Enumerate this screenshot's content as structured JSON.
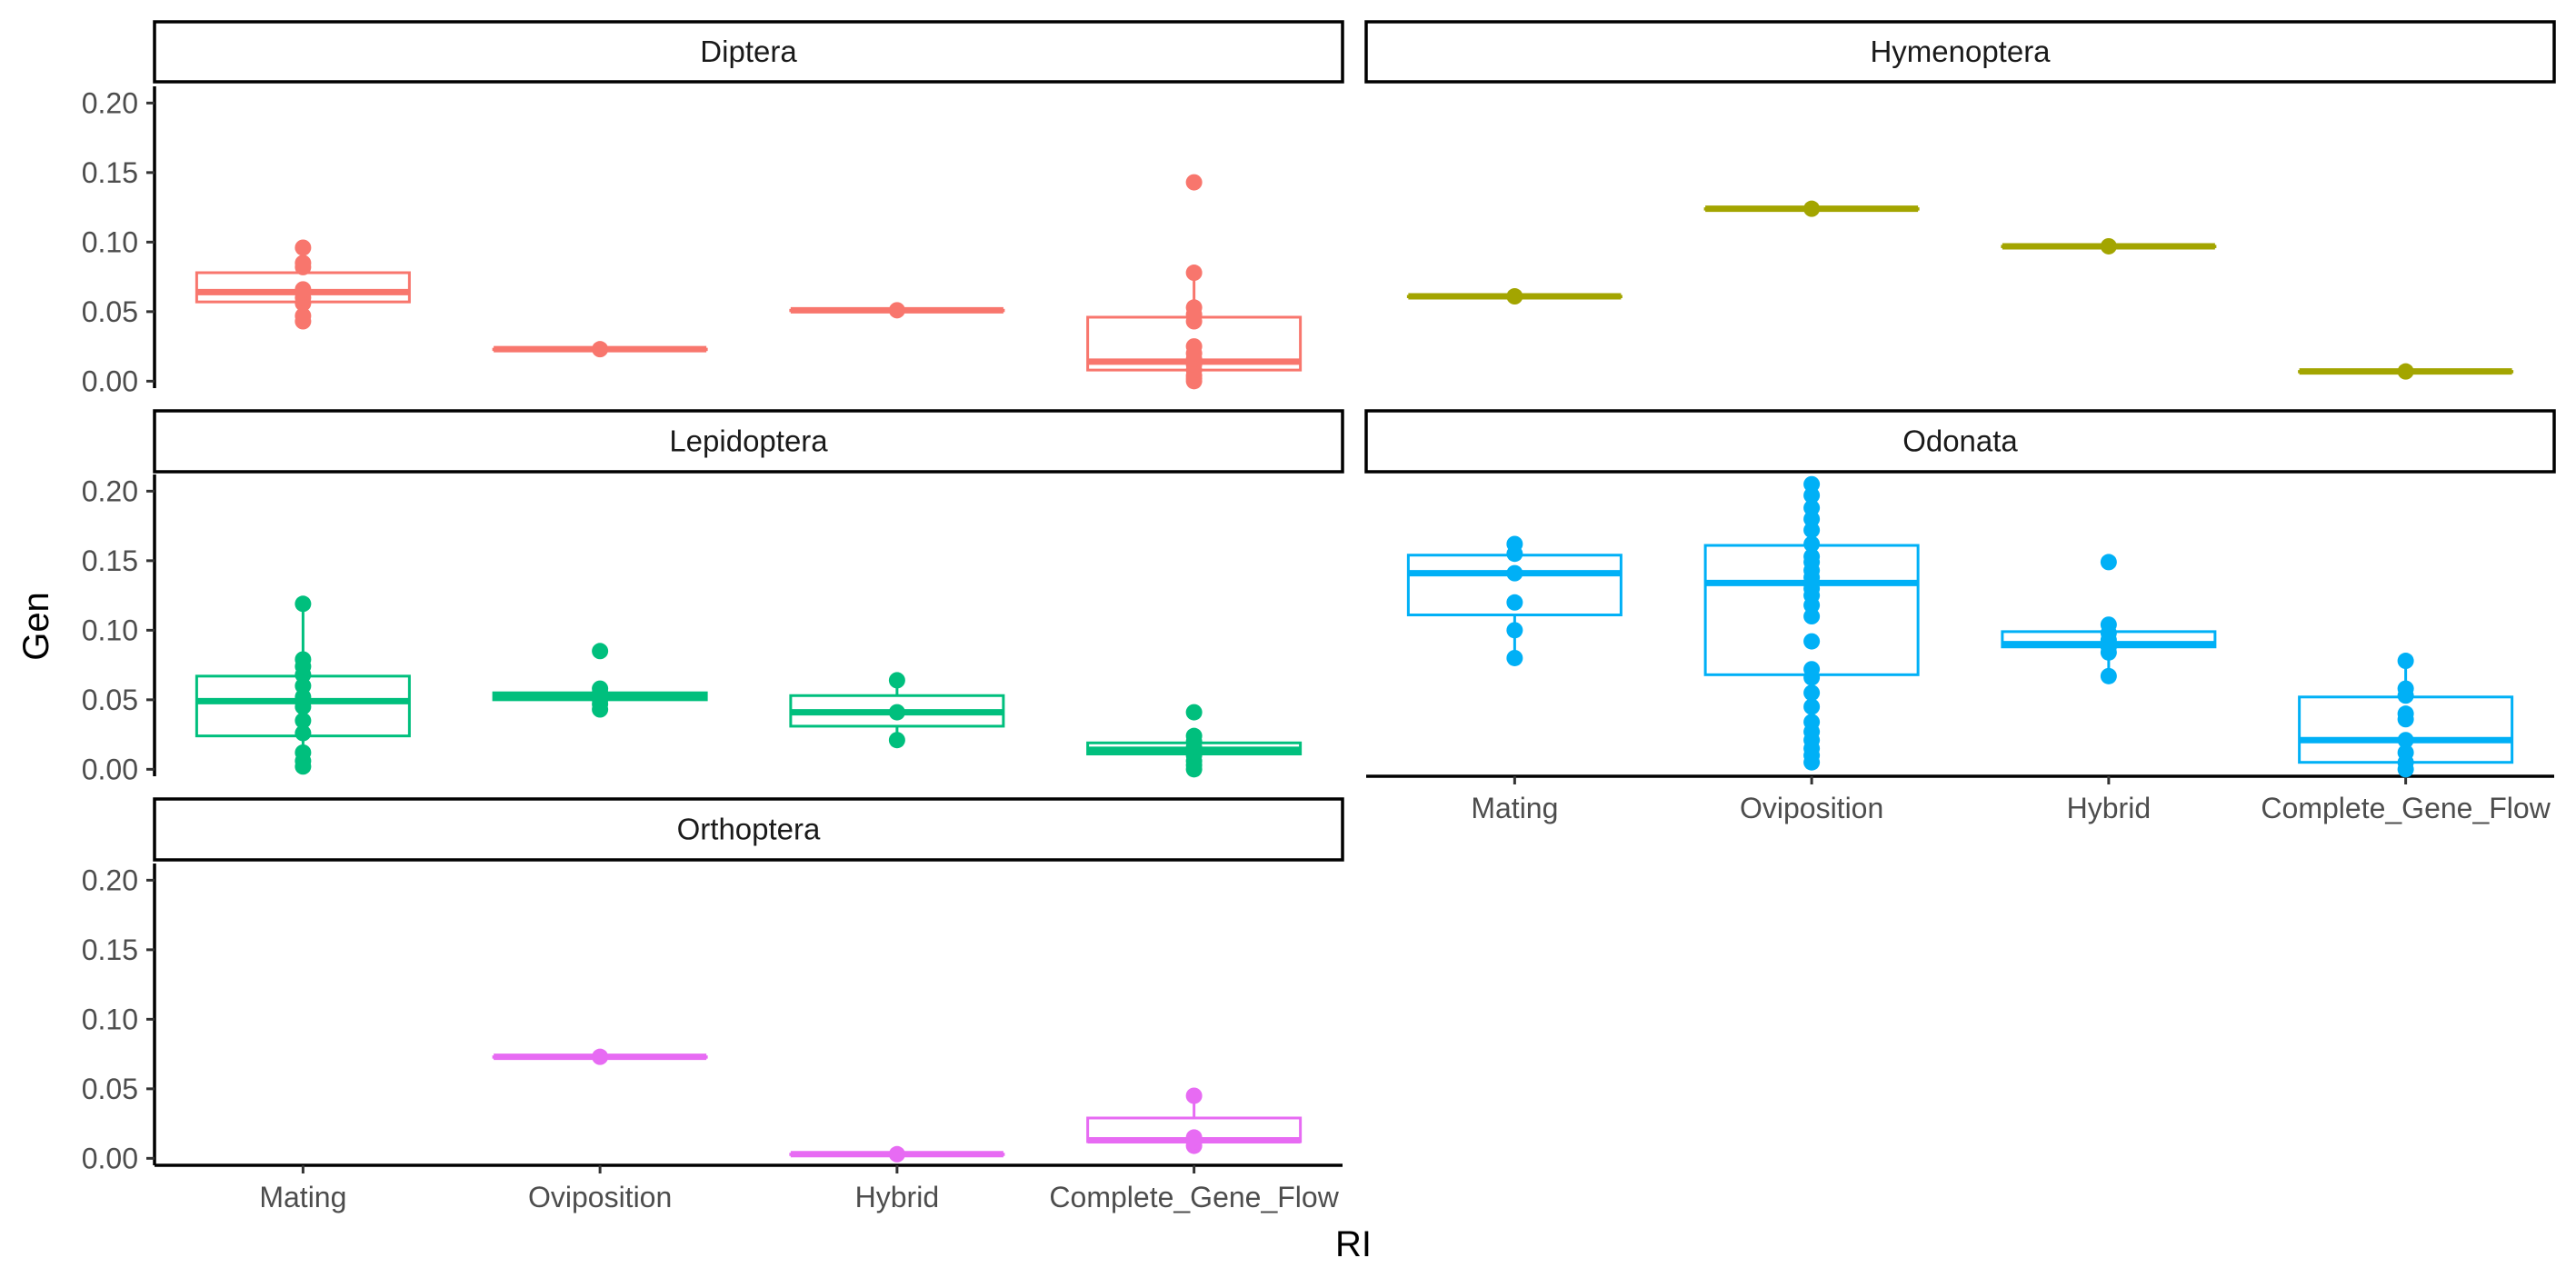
{
  "chart_data": {
    "type": "box",
    "xlabel": "RI",
    "ylabel": "Gen",
    "categories": [
      "Mating",
      "Oviposition",
      "Hybrid",
      "Complete_Gene_Flow"
    ],
    "ylim": [
      -0.005,
      0.212
    ],
    "yticks": [
      "0.00",
      "0.05",
      "0.10",
      "0.15",
      "0.20"
    ],
    "legend": "none",
    "grid": false,
    "panels": [
      {
        "name": "Diptera",
        "color": "#F8766D",
        "boxes": [
          {
            "category": "Mating",
            "q1": 0.057,
            "median": 0.064,
            "q3": 0.078,
            "min": 0.043,
            "max": 0.096,
            "points": [
              0.043,
              0.047,
              0.056,
              0.06,
              0.064,
              0.066,
              0.082,
              0.085,
              0.096
            ]
          },
          {
            "category": "Oviposition",
            "q1": 0.023,
            "median": 0.023,
            "q3": 0.023,
            "min": 0.023,
            "max": 0.023,
            "points": [
              0.023
            ]
          },
          {
            "category": "Hybrid",
            "q1": 0.051,
            "median": 0.051,
            "q3": 0.051,
            "min": 0.051,
            "max": 0.051,
            "points": [
              0.051
            ]
          },
          {
            "category": "Complete_Gene_Flow",
            "q1": 0.008,
            "median": 0.014,
            "q3": 0.046,
            "min": 0.0,
            "max": 0.078,
            "points": [
              0.0,
              0.002,
              0.004,
              0.008,
              0.012,
              0.016,
              0.02,
              0.025,
              0.043,
              0.048,
              0.053,
              0.078,
              0.143
            ]
          }
        ]
      },
      {
        "name": "Hymenoptera",
        "color": "#A3A500",
        "boxes": [
          {
            "category": "Mating",
            "q1": 0.061,
            "median": 0.061,
            "q3": 0.061,
            "min": 0.061,
            "max": 0.061,
            "points": [
              0.061
            ]
          },
          {
            "category": "Oviposition",
            "q1": 0.124,
            "median": 0.124,
            "q3": 0.124,
            "min": 0.124,
            "max": 0.124,
            "points": [
              0.124
            ]
          },
          {
            "category": "Hybrid",
            "q1": 0.097,
            "median": 0.097,
            "q3": 0.097,
            "min": 0.097,
            "max": 0.097,
            "points": [
              0.097
            ]
          },
          {
            "category": "Complete_Gene_Flow",
            "q1": 0.007,
            "median": 0.007,
            "q3": 0.007,
            "min": 0.007,
            "max": 0.007,
            "points": [
              0.007
            ]
          }
        ]
      },
      {
        "name": "Lepidoptera",
        "color": "#00BF7D",
        "boxes": [
          {
            "category": "Mating",
            "q1": 0.024,
            "median": 0.049,
            "q3": 0.067,
            "min": 0.002,
            "max": 0.119,
            "points": [
              0.002,
              0.006,
              0.012,
              0.026,
              0.035,
              0.045,
              0.052,
              0.06,
              0.068,
              0.074,
              0.079,
              0.119
            ]
          },
          {
            "category": "Oviposition",
            "q1": 0.05,
            "median": 0.052,
            "q3": 0.055,
            "min": 0.043,
            "max": 0.058,
            "points": [
              0.043,
              0.047,
              0.05,
              0.053,
              0.055,
              0.058,
              0.085
            ]
          },
          {
            "category": "Hybrid",
            "q1": 0.031,
            "median": 0.041,
            "q3": 0.053,
            "min": 0.021,
            "max": 0.064,
            "points": [
              0.021,
              0.041,
              0.064
            ]
          },
          {
            "category": "Complete_Gene_Flow",
            "q1": 0.011,
            "median": 0.014,
            "q3": 0.019,
            "min": 0.0,
            "max": 0.027,
            "points": [
              0.0,
              0.003,
              0.006,
              0.01,
              0.013,
              0.016,
              0.02,
              0.024,
              0.041
            ]
          }
        ]
      },
      {
        "name": "Odonata",
        "color": "#00B0F6",
        "boxes": [
          {
            "category": "Mating",
            "q1": 0.111,
            "median": 0.141,
            "q3": 0.154,
            "min": 0.08,
            "max": 0.162,
            "points": [
              0.08,
              0.1,
              0.12,
              0.141,
              0.155,
              0.162
            ]
          },
          {
            "category": "Oviposition",
            "q1": 0.068,
            "median": 0.134,
            "q3": 0.161,
            "min": 0.005,
            "max": 0.205,
            "points": [
              0.005,
              0.01,
              0.015,
              0.021,
              0.027,
              0.034,
              0.045,
              0.055,
              0.066,
              0.072,
              0.092,
              0.11,
              0.118,
              0.125,
              0.13,
              0.134,
              0.138,
              0.143,
              0.149,
              0.153,
              0.162,
              0.172,
              0.18,
              0.188,
              0.197,
              0.205
            ]
          },
          {
            "category": "Hybrid",
            "q1": 0.088,
            "median": 0.09,
            "q3": 0.099,
            "min": 0.067,
            "max": 0.104,
            "points": [
              0.067,
              0.084,
              0.088,
              0.093,
              0.098,
              0.104,
              0.149
            ]
          },
          {
            "category": "Complete_Gene_Flow",
            "q1": 0.005,
            "median": 0.021,
            "q3": 0.052,
            "min": 0.0,
            "max": 0.078,
            "points": [
              0.0,
              0.005,
              0.012,
              0.021,
              0.036,
              0.04,
              0.053,
              0.058,
              0.078
            ]
          }
        ]
      },
      {
        "name": "Orthoptera",
        "color": "#E76BF3",
        "boxes": [
          {
            "category": "Oviposition",
            "q1": 0.073,
            "median": 0.073,
            "q3": 0.073,
            "min": 0.073,
            "max": 0.073,
            "points": [
              0.073
            ]
          },
          {
            "category": "Hybrid",
            "q1": 0.003,
            "median": 0.003,
            "q3": 0.003,
            "min": 0.003,
            "max": 0.003,
            "points": [
              0.003
            ]
          },
          {
            "category": "Complete_Gene_Flow",
            "q1": 0.012,
            "median": 0.013,
            "q3": 0.029,
            "min": 0.009,
            "max": 0.045,
            "points": [
              0.009,
              0.012,
              0.015,
              0.045
            ]
          }
        ]
      }
    ]
  }
}
